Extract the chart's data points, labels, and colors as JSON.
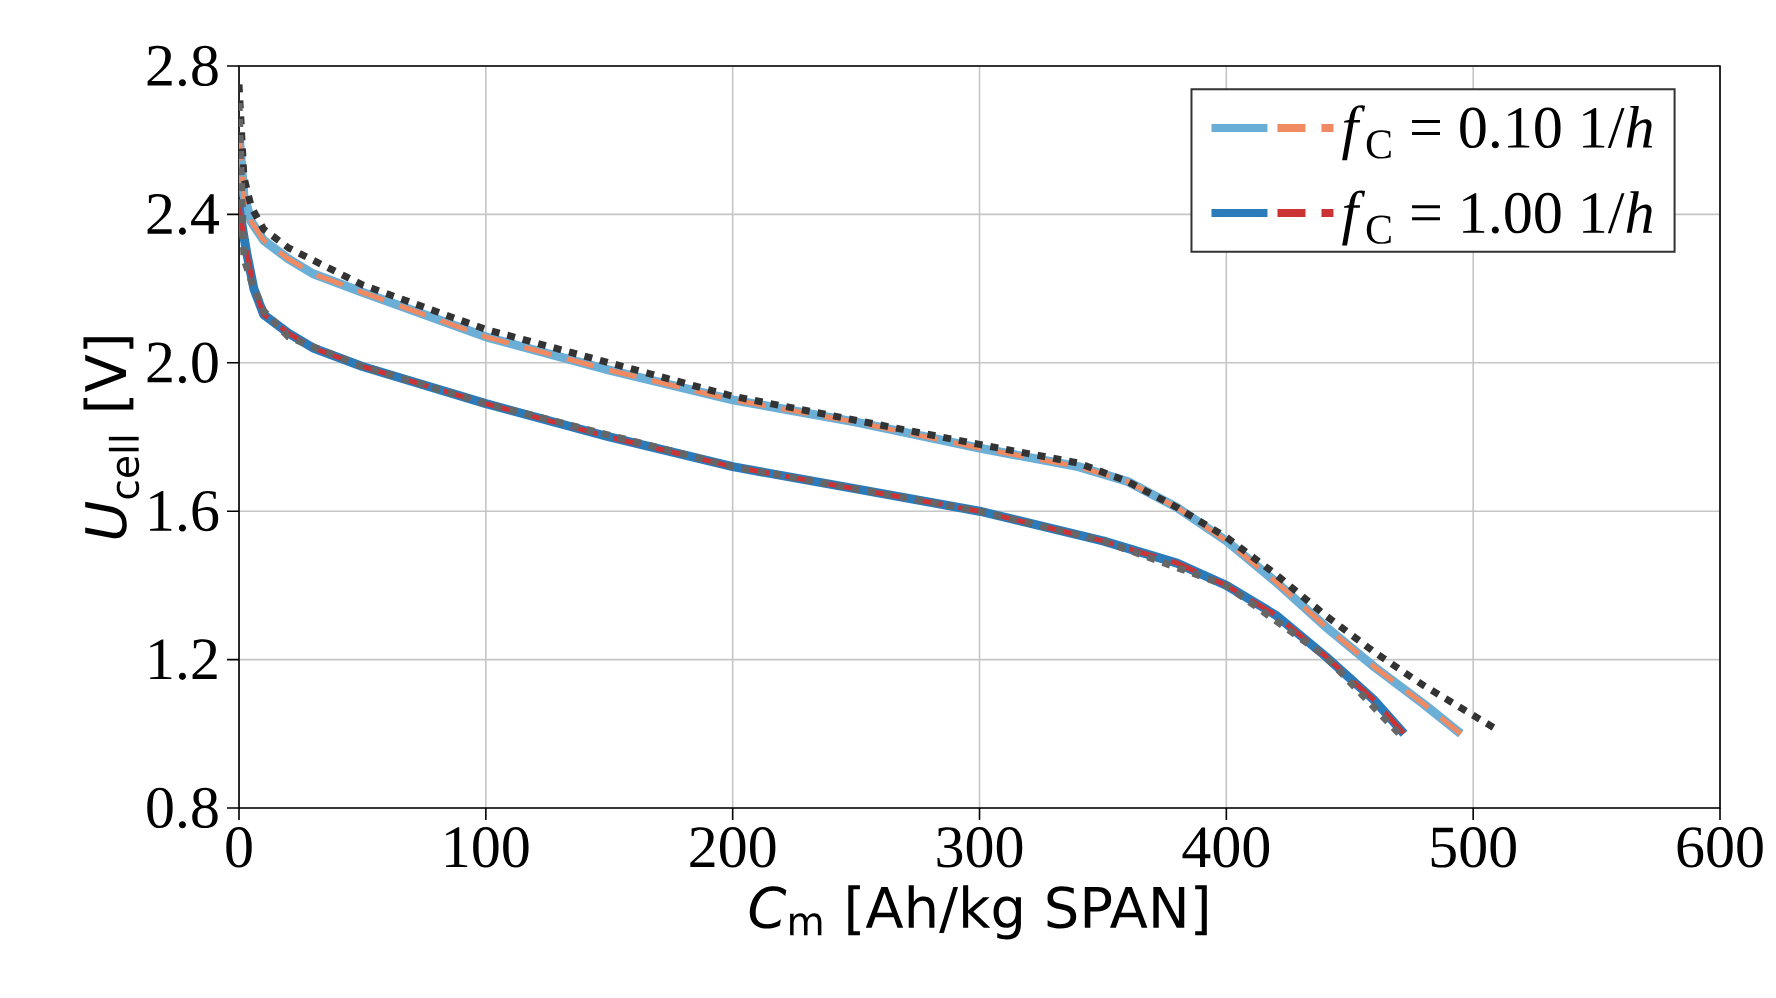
{
  "chart_data": {
    "type": "line",
    "xlabel": "*C*$_{m}$ [Ah/kg SPAN]",
    "ylabel": "*U*$_{cell}$ [V]",
    "xlim": [
      0,
      600
    ],
    "ylim": [
      0.8,
      2.8
    ],
    "xticks": [
      0,
      100,
      200,
      300,
      400,
      500,
      600
    ],
    "yticks": [
      0.8,
      1.2,
      1.6,
      {
        "value": 2.0,
        "label": "2.0"
      },
      2.4,
      2.8
    ],
    "grid": true,
    "legend": "top right",
    "marker": "none",
    "series": [
      {
        "color": "#6baed6",
        "line_style": "solid",
        "x": [
          0,
          2,
          5,
          10,
          20,
          30,
          50,
          100,
          150,
          200,
          250,
          300,
          340,
          360,
          380,
          400,
          420,
          440,
          460,
          480,
          495
        ],
        "values": [
          2.62,
          2.45,
          2.38,
          2.33,
          2.28,
          2.24,
          2.19,
          2.07,
          1.98,
          1.9,
          1.84,
          1.77,
          1.72,
          1.68,
          1.61,
          1.52,
          1.41,
          1.29,
          1.18,
          1.08,
          1.0
        ]
      },
      {
        "name": "*f*$_{C}$ = 0.10 1/*h*",
        "color": "#ef8a62",
        "line_style": "dashed",
        "x": [
          0,
          2,
          5,
          10,
          20,
          30,
          50,
          100,
          150,
          200,
          250,
          300,
          340,
          360,
          380,
          400,
          420,
          440,
          460,
          480,
          495
        ],
        "values": [
          2.62,
          2.45,
          2.38,
          2.33,
          2.28,
          2.24,
          2.19,
          2.07,
          1.98,
          1.9,
          1.84,
          1.77,
          1.72,
          1.68,
          1.61,
          1.52,
          1.41,
          1.29,
          1.18,
          1.08,
          1.0
        ]
      },
      {
        "color": "#2b7bba",
        "line_style": "solid",
        "x": [
          0,
          3,
          6,
          10,
          20,
          30,
          50,
          100,
          150,
          200,
          250,
          300,
          350,
          380,
          400,
          420,
          440,
          460,
          472
        ],
        "values": [
          2.42,
          2.3,
          2.2,
          2.13,
          2.08,
          2.04,
          1.99,
          1.89,
          1.8,
          1.72,
          1.66,
          1.6,
          1.52,
          1.46,
          1.4,
          1.32,
          1.21,
          1.09,
          1.0
        ]
      },
      {
        "name": "*f*$_{C}$ = 1.00 1/*h*",
        "color": "#cb3335",
        "line_style": "dashed",
        "x": [
          0,
          3,
          6,
          10,
          20,
          30,
          50,
          100,
          150,
          200,
          250,
          300,
          350,
          380,
          400,
          420,
          440,
          460,
          472
        ],
        "values": [
          2.42,
          2.3,
          2.2,
          2.13,
          2.08,
          2.04,
          1.99,
          1.89,
          1.8,
          1.72,
          1.66,
          1.6,
          1.52,
          1.46,
          1.4,
          1.32,
          1.21,
          1.09,
          1.0
        ]
      },
      {
        "color": "#333333",
        "line_style": "dotted",
        "x": [
          0,
          2,
          5,
          10,
          20,
          50,
          100,
          200,
          300,
          340,
          360,
          380,
          400,
          420,
          440,
          460,
          480,
          500,
          510
        ],
        "values": [
          2.75,
          2.5,
          2.42,
          2.36,
          2.31,
          2.21,
          2.09,
          1.91,
          1.78,
          1.73,
          1.68,
          1.61,
          1.53,
          1.43,
          1.32,
          1.22,
          1.13,
          1.05,
          1.01
        ]
      },
      {
        "color": "#666666",
        "line_style": "dotted",
        "x": [
          0,
          2,
          5,
          10,
          20,
          50,
          100,
          200,
          300,
          350,
          400,
          440,
          470
        ],
        "values": [
          2.7,
          2.28,
          2.22,
          2.14,
          2.07,
          1.99,
          1.89,
          1.72,
          1.6,
          1.52,
          1.4,
          1.21,
          1.0
        ]
      }
    ]
  }
}
